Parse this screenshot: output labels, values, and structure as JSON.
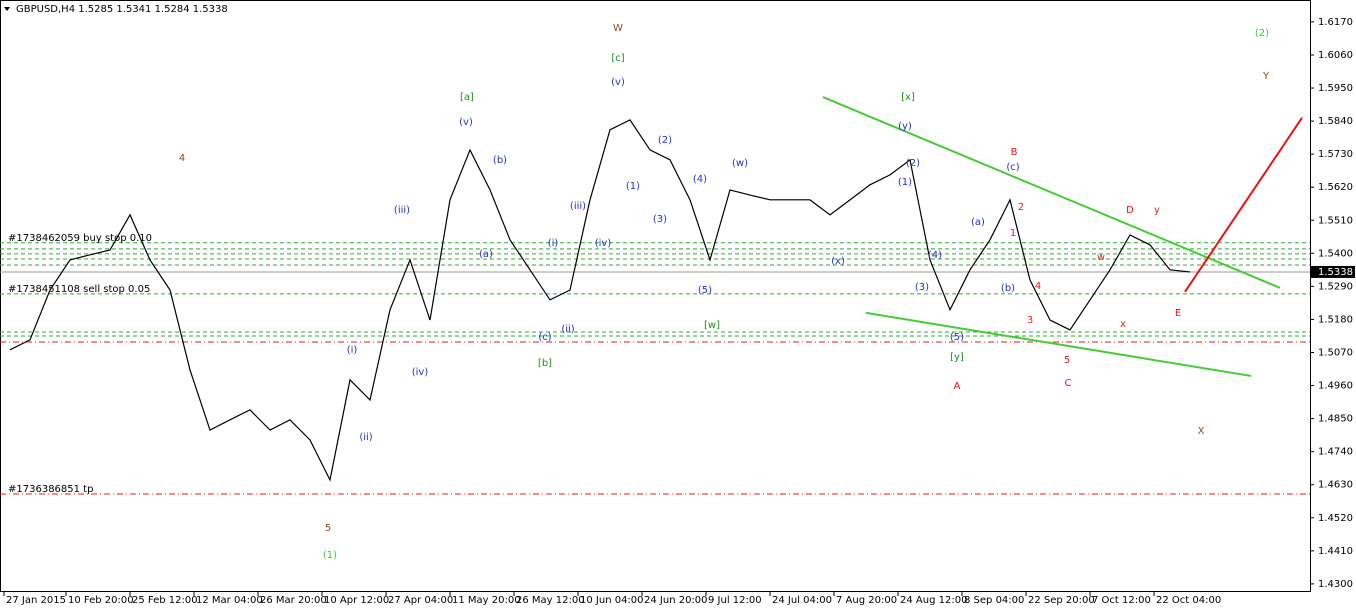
{
  "chart_data": {
    "type": "line",
    "title": "GBPUSD,H4  1.5285 1.5341 1.5284 1.5338",
    "color": "#000000",
    "values": [
      1.5079,
      1.5112,
      1.5278,
      1.5378,
      1.5395,
      1.5411,
      1.5528,
      1.5378,
      1.5278,
      1.5012,
      1.4812,
      1.4846,
      1.4879,
      1.4812,
      1.4846,
      1.4779,
      1.4646,
      1.4979,
      1.4912,
      1.5212,
      1.5378,
      1.5178,
      1.5578,
      1.5744,
      1.5611,
      1.5445,
      1.5345,
      1.5245,
      1.5278,
      1.5578,
      1.5811,
      1.5844,
      1.5744,
      1.5711,
      1.5578,
      1.5378,
      1.5611,
      1.5594,
      1.5578,
      1.5578,
      1.5578,
      1.5528,
      1.5578,
      1.5628,
      1.5661,
      1.5711,
      1.5378,
      1.5212,
      1.5345,
      1.5445,
      1.5578,
      1.5311,
      1.5178,
      1.5145,
      1.5245,
      1.5345,
      1.5461,
      1.5428,
      1.5345,
      1.5338
    ],
    "xlim": [
      -0.5,
      65
    ],
    "xticks": [
      {
        "value": -0.3,
        "label": "27 Jan 2015"
      },
      {
        "value": 2.8,
        "label": "10 Feb 20:00"
      },
      {
        "value": 6,
        "label": "25 Feb 12:00"
      },
      {
        "value": 9.2,
        "label": "12 Mar 04:00"
      },
      {
        "value": 12.4,
        "label": "26 Mar 20:00"
      },
      {
        "value": 15.6,
        "label": "10 Apr 12:00"
      },
      {
        "value": 18.8,
        "label": "27 Apr 04:00"
      },
      {
        "value": 22,
        "label": "11 May 20:00"
      },
      {
        "value": 25.2,
        "label": "26 May 12:00"
      },
      {
        "value": 28.4,
        "label": "10 Jun 04:00"
      },
      {
        "value": 31.6,
        "label": "24 Jun 20:00"
      },
      {
        "value": 34.8,
        "label": "9 Jul 12:00"
      },
      {
        "value": 38,
        "label": "24 Jul 04:00"
      },
      {
        "value": 41.2,
        "label": "7 Aug 20:00"
      },
      {
        "value": 44.4,
        "label": "24 Aug 12:00"
      },
      {
        "value": 47.6,
        "label": "8 Sep 04:00"
      },
      {
        "value": 50.8,
        "label": "22 Sep 20:00"
      },
      {
        "value": 54,
        "label": "7 Oct 12:00"
      },
      {
        "value": 57.2,
        "label": "22 Oct 04:00"
      }
    ],
    "ylim": [
      1.4273,
      1.6233
    ],
    "yticks": [
      {
        "value": 1.617,
        "label": "1.6170"
      },
      {
        "value": 1.606,
        "label": "1.6060"
      },
      {
        "value": 1.595,
        "label": "1.5950"
      },
      {
        "value": 1.584,
        "label": "1.5840"
      },
      {
        "value": 1.573,
        "label": "1.5730"
      },
      {
        "value": 1.562,
        "label": "1.5620"
      },
      {
        "value": 1.551,
        "label": "1.5510"
      },
      {
        "value": 1.54,
        "label": "1.5400"
      },
      {
        "value": 1.529,
        "label": "1.5290"
      },
      {
        "value": 1.518,
        "label": "1.5180"
      },
      {
        "value": 1.507,
        "label": "1.5070"
      },
      {
        "value": 1.496,
        "label": "1.4960"
      },
      {
        "value": 1.485,
        "label": "1.4850"
      },
      {
        "value": 1.474,
        "label": "1.4740"
      },
      {
        "value": 1.463,
        "label": "1.4630"
      },
      {
        "value": 1.452,
        "label": "1.4520"
      },
      {
        "value": 1.441,
        "label": "1.4410"
      },
      {
        "value": 1.43,
        "label": "1.4300"
      }
    ],
    "last_price": {
      "value": 1.5338,
      "label": "1.5338"
    },
    "levels": [
      {
        "value": 1.5435,
        "color": "#33aa33",
        "label": "#1738462059 buy stop 0.10"
      },
      {
        "value": 1.5415,
        "color": "#33aa33"
      },
      {
        "value": 1.5398,
        "color": "#33aa33"
      },
      {
        "value": 1.5381,
        "color": "#33aa33"
      },
      {
        "value": 1.5361,
        "color": "#33aa33"
      },
      {
        "value": 1.5265,
        "color": "#33aa33",
        "label": "#1738451108 sell stop 0.05"
      },
      {
        "value": 1.5138,
        "color": "#33aa33"
      },
      {
        "value": 1.5125,
        "color": "#33aa33"
      },
      {
        "value": 1.5105,
        "color": "#dd2222"
      },
      {
        "value": 1.4599,
        "color": "#dd2222",
        "label": "#1736386851 tp"
      }
    ],
    "trend_lines": [
      {
        "x1": 40.65,
        "y1": 1.592,
        "x2": 63.5,
        "y2": 1.5285,
        "color": "#44cc33"
      },
      {
        "x1": 42.8,
        "y1": 1.5202,
        "x2": 62.05,
        "y2": 1.4992,
        "color": "#44cc33"
      },
      {
        "x1": 58.75,
        "y1": 1.5272,
        "x2": 64.6,
        "y2": 1.5851,
        "color": "#ee1111"
      }
    ],
    "annotations": [
      {
        "text": "W",
        "x": 30.4,
        "y": 1.615,
        "color": "#8b4a2b"
      },
      {
        "text": "[c]",
        "x": 30.4,
        "y": 1.605,
        "color": "#228b22"
      },
      {
        "text": "(v)",
        "x": 30.4,
        "y": 1.597,
        "color": "#2233cc"
      },
      {
        "text": "[a]",
        "x": 22.85,
        "y": 1.592,
        "color": "#228b22"
      },
      {
        "text": "(v)",
        "x": 22.8,
        "y": 1.5837,
        "color": "#2233cc"
      },
      {
        "text": "4",
        "x": 8.6,
        "y": 1.5717,
        "color": "#8b4a2b"
      },
      {
        "text": "(iii)",
        "x": 19.6,
        "y": 1.5544,
        "color": "#2233cc"
      },
      {
        "text": "(i)",
        "x": 17.1,
        "y": 1.5079,
        "color": "#2233cc"
      },
      {
        "text": "(ii)",
        "x": 17.8,
        "y": 1.4789,
        "color": "#2233cc"
      },
      {
        "text": "(iv)",
        "x": 20.5,
        "y": 1.5005,
        "color": "#2233cc"
      },
      {
        "text": "5",
        "x": 15.9,
        "y": 1.4486,
        "color": "#8b4a2b"
      },
      {
        "text": "(1)",
        "x": 16,
        "y": 1.4396,
        "color": "#33cc33"
      },
      {
        "text": "(b)",
        "x": 24.5,
        "y": 1.5711,
        "color": "#2233cc"
      },
      {
        "text": "(a)",
        "x": 23.8,
        "y": 1.5398,
        "color": "#2233cc"
      },
      {
        "text": "[b]",
        "x": 26.75,
        "y": 1.5035,
        "color": "#228b22"
      },
      {
        "text": "(c)",
        "x": 26.75,
        "y": 1.5122,
        "color": "#2233cc"
      },
      {
        "text": "(ii)",
        "x": 27.9,
        "y": 1.5148,
        "color": "#2233cc"
      },
      {
        "text": "(i)",
        "x": 27.15,
        "y": 1.5435,
        "color": "#2233cc"
      },
      {
        "text": "(iii)",
        "x": 28.4,
        "y": 1.5558,
        "color": "#2233cc"
      },
      {
        "text": "(iv)",
        "x": 29.65,
        "y": 1.5435,
        "color": "#2233cc"
      },
      {
        "text": "(1)",
        "x": 31.15,
        "y": 1.5624,
        "color": "#2233cc"
      },
      {
        "text": "(2)",
        "x": 32.75,
        "y": 1.5777,
        "color": "#2233cc"
      },
      {
        "text": "(3)",
        "x": 32.5,
        "y": 1.5514,
        "color": "#2233cc"
      },
      {
        "text": "(4)",
        "x": 34.5,
        "y": 1.5647,
        "color": "#2233cc"
      },
      {
        "text": "(5)",
        "x": 34.75,
        "y": 1.5278,
        "color": "#2233cc"
      },
      {
        "text": "(w)",
        "x": 36.5,
        "y": 1.5701,
        "color": "#2233cc"
      },
      {
        "text": "[w]",
        "x": 35.1,
        "y": 1.5162,
        "color": "#228b22"
      },
      {
        "text": "(x)",
        "x": 41.4,
        "y": 1.5375,
        "color": "#2233cc"
      },
      {
        "text": "[x]",
        "x": 44.9,
        "y": 1.592,
        "color": "#228b22"
      },
      {
        "text": "(y)",
        "x": 44.75,
        "y": 1.5824,
        "color": "#2233cc"
      },
      {
        "text": "(2)",
        "x": 45.15,
        "y": 1.5701,
        "color": "#2233cc"
      },
      {
        "text": "(1)",
        "x": 44.75,
        "y": 1.5638,
        "color": "#2233cc"
      },
      {
        "text": "(4)",
        "x": 46.25,
        "y": 1.5395,
        "color": "#2233cc"
      },
      {
        "text": "(3)",
        "x": 45.6,
        "y": 1.5288,
        "color": "#2233cc"
      },
      {
        "text": "(5)",
        "x": 47.35,
        "y": 1.5122,
        "color": "#2233cc"
      },
      {
        "text": "[y]",
        "x": 47.35,
        "y": 1.5055,
        "color": "#228b22"
      },
      {
        "text": "A",
        "x": 47.35,
        "y": 1.4959,
        "color": "#ee1111"
      },
      {
        "text": "(a)",
        "x": 48.4,
        "y": 1.5504,
        "color": "#2233cc"
      },
      {
        "text": "(b)",
        "x": 49.9,
        "y": 1.5285,
        "color": "#2233cc"
      },
      {
        "text": "(c)",
        "x": 50.15,
        "y": 1.5687,
        "color": "#2233cc"
      },
      {
        "text": "B",
        "x": 50.2,
        "y": 1.5737,
        "color": "#ee1111"
      },
      {
        "text": "1",
        "x": 50.15,
        "y": 1.5468,
        "color": "#dd2222"
      },
      {
        "text": "2",
        "x": 50.55,
        "y": 1.5554,
        "color": "#dd2222"
      },
      {
        "text": "3",
        "x": 51,
        "y": 1.5178,
        "color": "#dd2222"
      },
      {
        "text": "4",
        "x": 51.4,
        "y": 1.5291,
        "color": "#dd2222"
      },
      {
        "text": "5",
        "x": 52.85,
        "y": 1.5045,
        "color": "#dd2222"
      },
      {
        "text": "C",
        "x": 52.9,
        "y": 1.4969,
        "color": "#ee1111"
      },
      {
        "text": "w",
        "x": 54.55,
        "y": 1.5388,
        "color": "#dd2222"
      },
      {
        "text": "x",
        "x": 55.65,
        "y": 1.5165,
        "color": "#dd2222"
      },
      {
        "text": "D",
        "x": 56,
        "y": 1.5544,
        "color": "#ee1111"
      },
      {
        "text": "y",
        "x": 57.35,
        "y": 1.5544,
        "color": "#dd2222"
      },
      {
        "text": "E",
        "x": 58.4,
        "y": 1.5202,
        "color": "#ee1111"
      },
      {
        "text": "(2)",
        "x": 62.6,
        "y": 1.6133,
        "color": "#33cc33"
      },
      {
        "text": "Y",
        "x": 62.8,
        "y": 1.599,
        "color": "#8b4a2b"
      },
      {
        "text": "X",
        "x": 59.55,
        "y": 1.4809,
        "color": "#8b4a2b"
      }
    ]
  }
}
